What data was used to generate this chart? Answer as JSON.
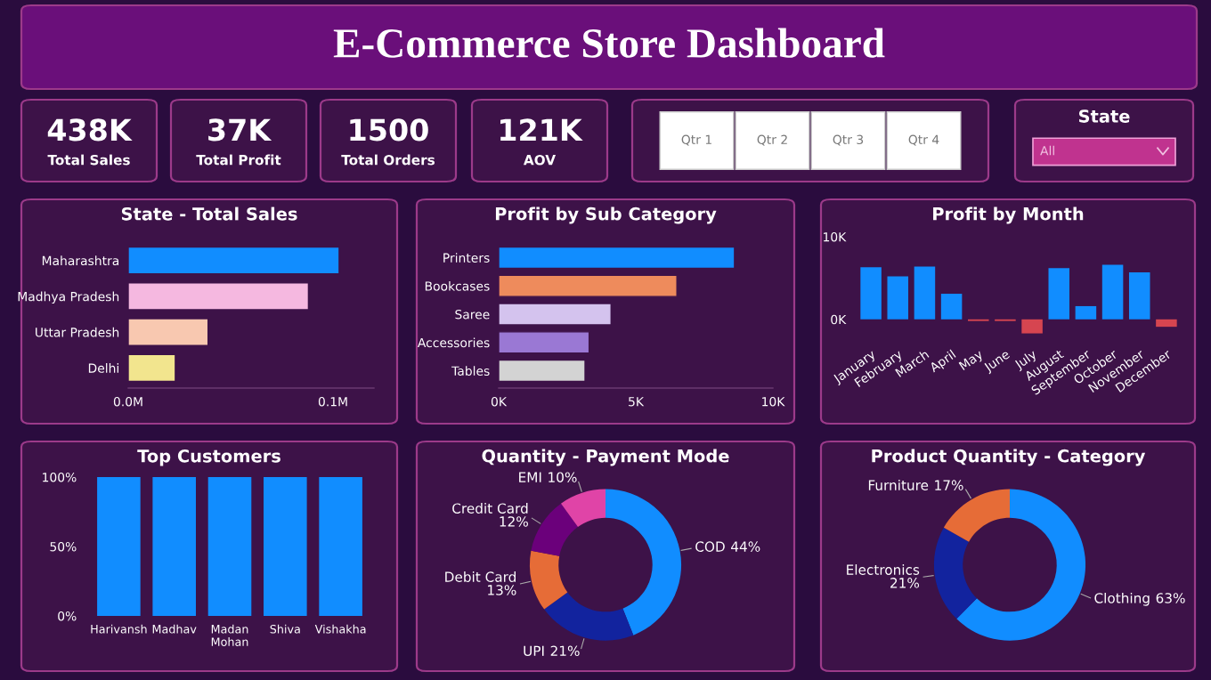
{
  "chart_data": [
    {
      "type": "other",
      "title": "E-Commerce Store Dashboard"
    },
    {
      "type": "other",
      "title": "438K",
      "subtitle": "Total Sales"
    },
    {
      "type": "other",
      "title": "37K",
      "subtitle": "Total Profit"
    },
    {
      "type": "other",
      "title": "1500",
      "subtitle": "Total Orders"
    },
    {
      "type": "other",
      "title": "121K",
      "subtitle": "AOV"
    },
    {
      "type": "other",
      "annotations": [
        "Qtr 1",
        "Qtr 2",
        "Qtr 3",
        "Qtr 4"
      ]
    },
    {
      "type": "other",
      "title": "State",
      "annotations": [
        "All"
      ]
    },
    {
      "type": "bar",
      "orientation": "horizontal",
      "title": "State - Total Sales",
      "categories": [
        "Maharashtra",
        "Madhya Pradesh",
        "Uttar Pradesh",
        "Delhi"
      ],
      "values": [
        0.103,
        0.088,
        0.039,
        0.023
      ],
      "colors": [
        "#118dff",
        "#f5b8e0",
        "#f8c8b0",
        "#f2e58e"
      ],
      "xlim": [
        0,
        0.12
      ],
      "xticks": [
        {
          "value": 0,
          "label": "0.0M"
        },
        {
          "value": 0.1,
          "label": "0.1M"
        }
      ]
    },
    {
      "type": "bar",
      "orientation": "horizontal",
      "title": "Profit by Sub Category",
      "categories": [
        "Printers",
        "Bookcases",
        "Saree",
        "Accessories",
        "Tables"
      ],
      "values": [
        8600,
        6500,
        4100,
        3300,
        3150
      ],
      "colors": [
        "#118dff",
        "#ee8b5c",
        "#d4c3ee",
        "#9a78d4",
        "#d3d3d3"
      ],
      "xlim": [
        0,
        10000
      ],
      "xticks": [
        {
          "value": 0,
          "label": "0K"
        },
        {
          "value": 5000,
          "label": "5K"
        },
        {
          "value": 10000,
          "label": "10K"
        }
      ]
    },
    {
      "type": "bar",
      "title": "Profit by Month",
      "categories": [
        "January",
        "February",
        "March",
        "April",
        "May",
        "June",
        "July",
        "August",
        "September",
        "October",
        "November",
        "December"
      ],
      "values": [
        6300,
        5200,
        6400,
        3100,
        -200,
        -200,
        -1700,
        6200,
        1600,
        6600,
        5700,
        -900
      ],
      "colors": [
        "#118dff",
        "#118dff",
        "#118dff",
        "#118dff",
        "#d64550",
        "#d64550",
        "#d64550",
        "#118dff",
        "#118dff",
        "#118dff",
        "#118dff",
        "#d64550"
      ],
      "ylim": [
        -2500,
        10000
      ],
      "yticks": [
        {
          "value": 0,
          "label": "0K"
        },
        {
          "value": 10000,
          "label": "10K"
        }
      ]
    },
    {
      "type": "bar",
      "title": "Top Customers",
      "categories": [
        "Harivansh",
        "Madhav",
        "Madan Mohan",
        "Shiva",
        "Vishakha"
      ],
      "values": [
        100,
        100,
        100,
        100,
        100
      ],
      "colors": [
        "#118dff",
        "#118dff",
        "#118dff",
        "#118dff",
        "#118dff"
      ],
      "ylim": [
        0,
        100
      ],
      "yticks": [
        {
          "value": 0,
          "label": "0%"
        },
        {
          "value": 50,
          "label": "50%"
        },
        {
          "value": 100,
          "label": "100%"
        }
      ]
    },
    {
      "type": "donut",
      "title": "Quantity - Payment Mode",
      "categories": [
        "COD",
        "UPI",
        "Debit Card",
        "Credit Card",
        "EMI"
      ],
      "values": [
        44,
        21,
        13,
        12,
        10
      ],
      "value_labels": [
        "44%",
        "21%",
        "13%",
        "12%",
        "10%"
      ],
      "colors": [
        "#118dff",
        "#12239e",
        "#e66c37",
        "#6b007b",
        "#e044a7"
      ]
    },
    {
      "type": "donut",
      "title": "Product Quantity - Category",
      "categories": [
        "Clothing",
        "Electronics",
        "Furniture"
      ],
      "values": [
        63,
        21,
        17
      ],
      "value_labels": [
        "63%",
        "21%",
        "17%"
      ],
      "colors": [
        "#118dff",
        "#12239e",
        "#e66c37"
      ]
    }
  ]
}
